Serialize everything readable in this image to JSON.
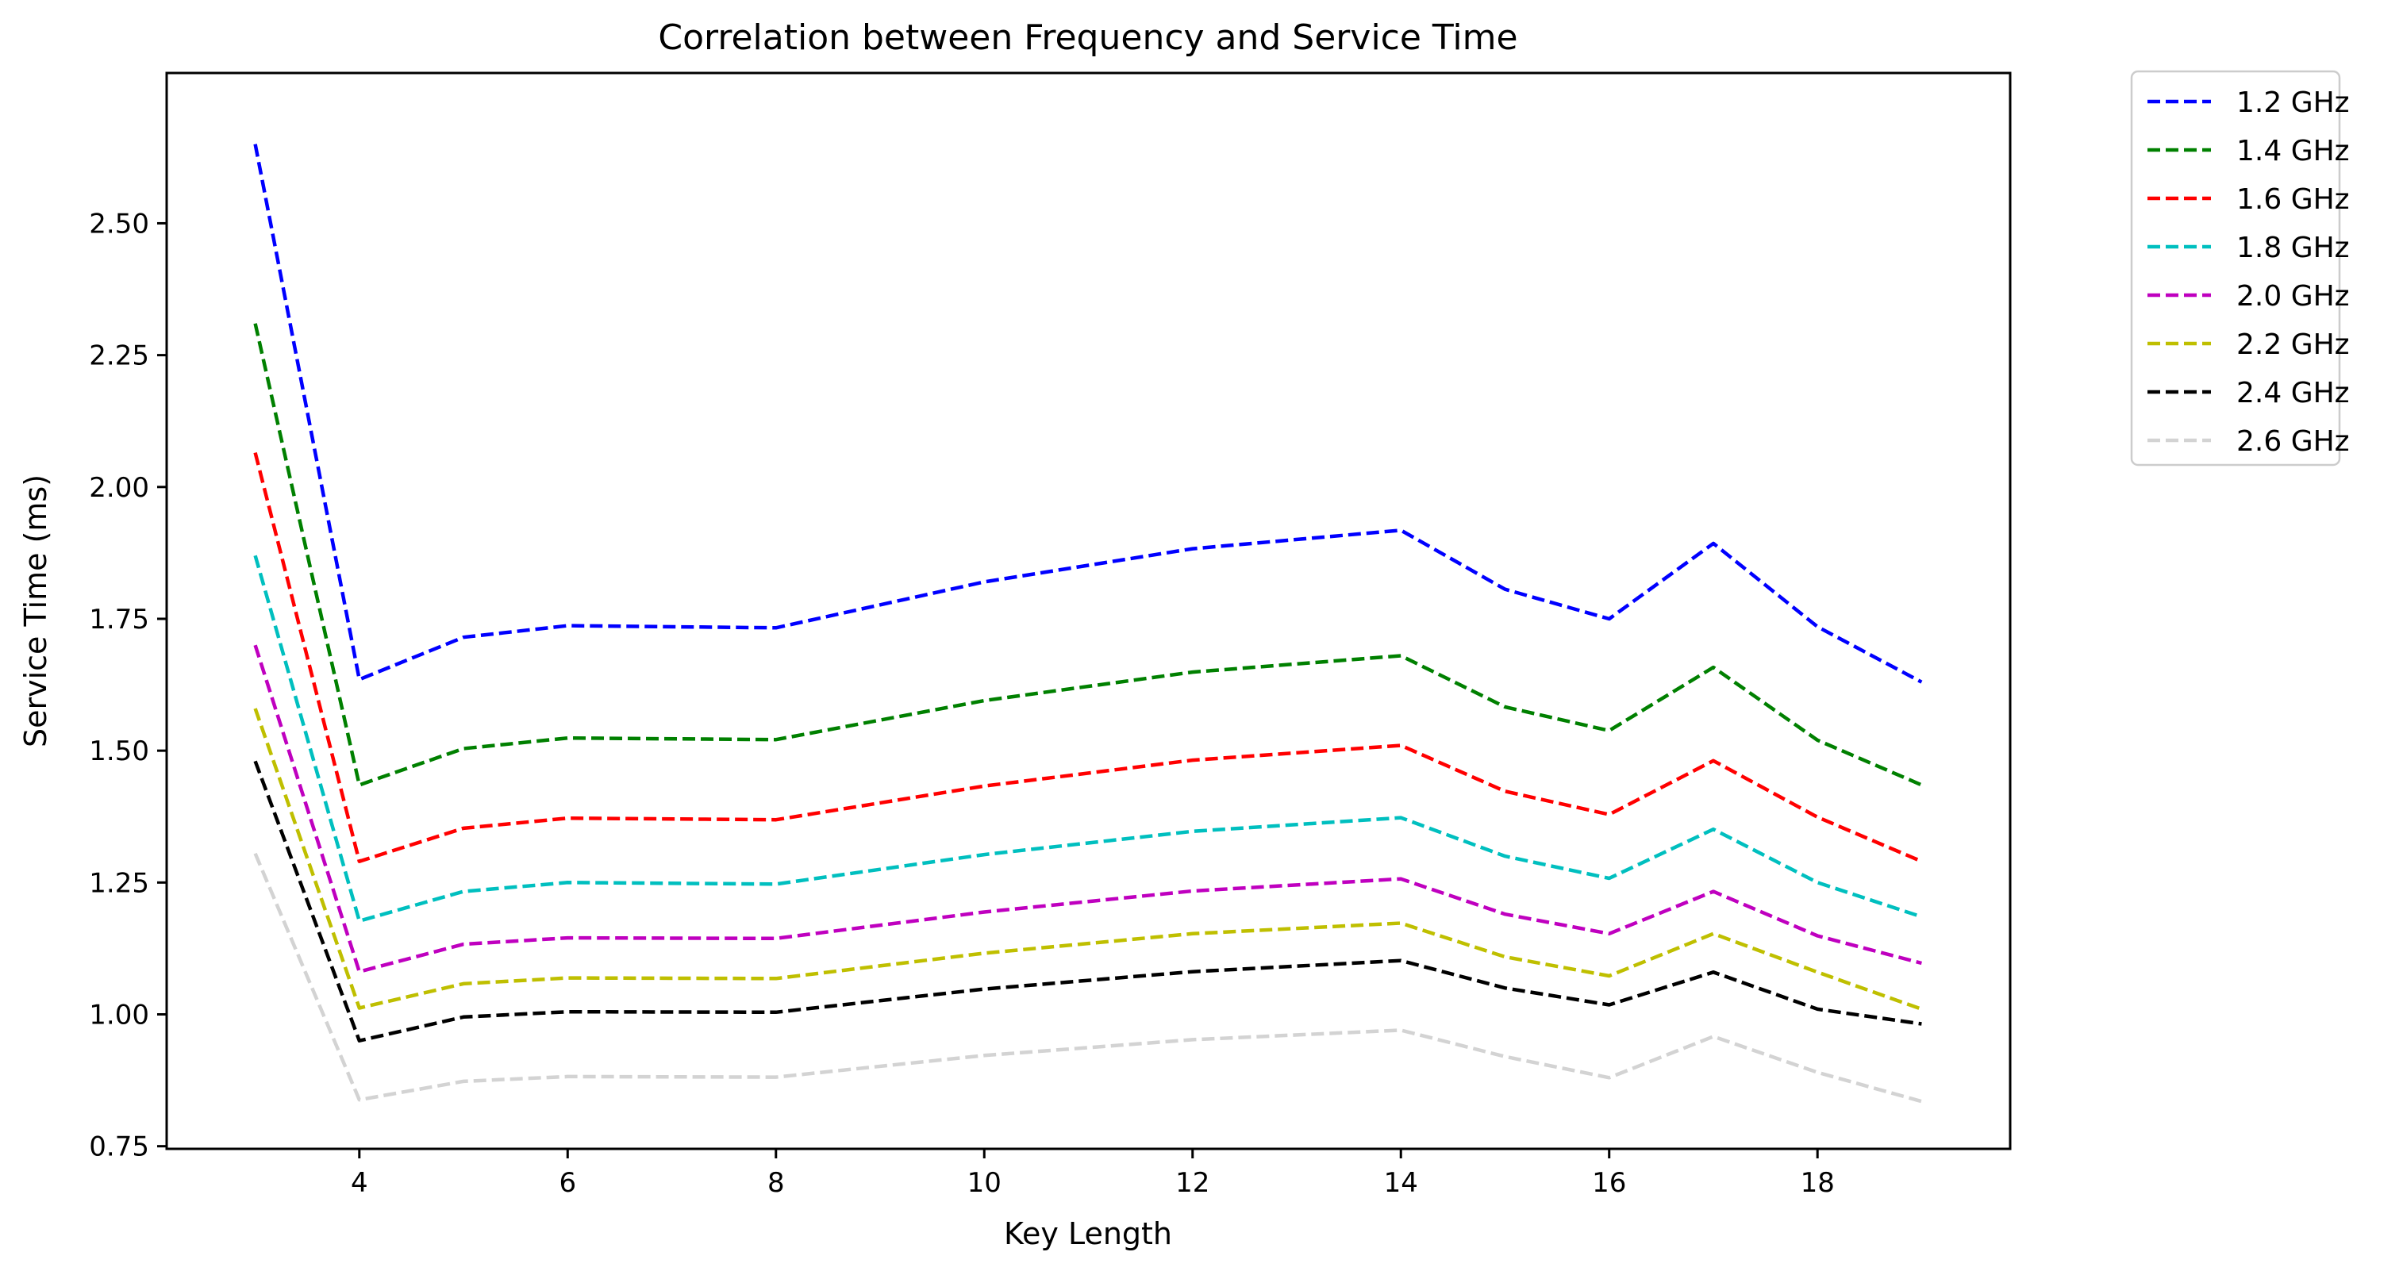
{
  "chart_data": {
    "type": "line",
    "title": "Correlation between Frequency and Service Time",
    "xlabel": "Key Length",
    "ylabel": "Service Time (ms)",
    "xlim": [
      2.15,
      19.85
    ],
    "ylim": [
      0.745,
      2.785
    ],
    "xticks": [
      4,
      6,
      8,
      10,
      12,
      14,
      16,
      18
    ],
    "xtick_labels": [
      "4",
      "6",
      "8",
      "10",
      "12",
      "14",
      "16",
      "18"
    ],
    "yticks": [
      0.75,
      1.0,
      1.25,
      1.5,
      1.75,
      2.0,
      2.25,
      2.5
    ],
    "ytick_labels": [
      "0.75",
      "1.00",
      "1.25",
      "1.50",
      "1.75",
      "2.00",
      "2.25",
      "2.50"
    ],
    "grid": false,
    "legend_position": "outside-top-right",
    "line_style": "dashed",
    "x": [
      3,
      4,
      5,
      6,
      8,
      10,
      12,
      14,
      15,
      16,
      17,
      18,
      19
    ],
    "series": [
      {
        "name": "1.2 GHz",
        "color": "#0000ff",
        "values": [
          2.65,
          1.635,
          1.715,
          1.737,
          1.733,
          1.82,
          1.883,
          1.918,
          1.806,
          1.75,
          1.893,
          1.735,
          1.63
        ]
      },
      {
        "name": "1.4 GHz",
        "color": "#008000",
        "values": [
          2.31,
          1.435,
          1.504,
          1.524,
          1.521,
          1.595,
          1.649,
          1.68,
          1.583,
          1.538,
          1.658,
          1.52,
          1.435
        ]
      },
      {
        "name": "1.6 GHz",
        "color": "#ff0000",
        "values": [
          2.065,
          1.29,
          1.353,
          1.372,
          1.369,
          1.433,
          1.482,
          1.51,
          1.423,
          1.379,
          1.481,
          1.374,
          1.29
        ]
      },
      {
        "name": "1.8 GHz",
        "color": "#00bfbf",
        "values": [
          1.87,
          1.177,
          1.233,
          1.25,
          1.247,
          1.303,
          1.347,
          1.373,
          1.3,
          1.258,
          1.351,
          1.25,
          1.185
        ]
      },
      {
        "name": "2.0 GHz",
        "color": "#bf00bf",
        "values": [
          1.7,
          1.081,
          1.133,
          1.145,
          1.144,
          1.194,
          1.234,
          1.257,
          1.19,
          1.153,
          1.233,
          1.149,
          1.097
        ]
      },
      {
        "name": "2.2 GHz",
        "color": "#bfbf00",
        "values": [
          1.58,
          1.012,
          1.058,
          1.069,
          1.068,
          1.116,
          1.153,
          1.173,
          1.109,
          1.073,
          1.153,
          1.08,
          1.01
        ]
      },
      {
        "name": "2.4 GHz",
        "color": "#000000",
        "values": [
          1.48,
          0.95,
          0.995,
          1.005,
          1.004,
          1.048,
          1.081,
          1.102,
          1.05,
          1.018,
          1.08,
          1.01,
          0.982
        ]
      },
      {
        "name": "2.6 GHz",
        "color": "#d3d3d3",
        "values": [
          1.305,
          0.838,
          0.873,
          0.882,
          0.881,
          0.922,
          0.952,
          0.97,
          0.92,
          0.88,
          0.958,
          0.89,
          0.835
        ]
      }
    ]
  }
}
